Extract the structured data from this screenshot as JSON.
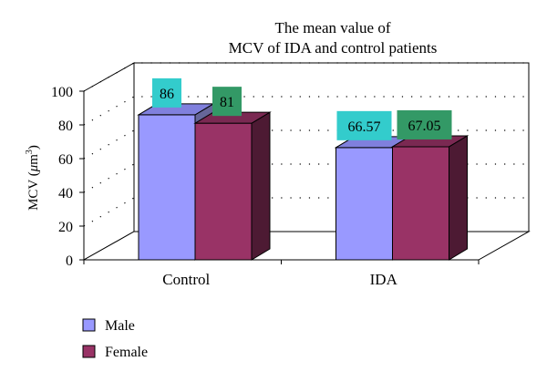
{
  "chart_data": {
    "type": "bar",
    "title_lines": [
      "The mean value of",
      "MCV of IDA and control patients"
    ],
    "ylabel_main": "MCV (",
    "ylabel_mu": "μ",
    "ylabel_unit": "m",
    "ylabel_sup": "3",
    "ylabel_close": ")",
    "xlabel": "",
    "ylim": [
      0,
      100
    ],
    "y_ticks": [
      0,
      20,
      40,
      60,
      80,
      100
    ],
    "categories": [
      "Control",
      "IDA"
    ],
    "series": [
      {
        "name": "Male",
        "values": [
          86,
          66.57
        ],
        "labels": [
          "86",
          "66.57"
        ],
        "color": "#9999ff",
        "side_color": "#666699",
        "top_color": "#8080dd",
        "label_bg": "#33cccc"
      },
      {
        "name": "Female",
        "values": [
          81,
          67.05
        ],
        "labels": [
          "81",
          "67.05"
        ],
        "color": "#993366",
        "side_color": "#4d1a33",
        "top_color": "#7a2952",
        "label_bg": "#339966"
      }
    ],
    "grid": true,
    "three_d": true,
    "legend_position": "bottom-left"
  }
}
